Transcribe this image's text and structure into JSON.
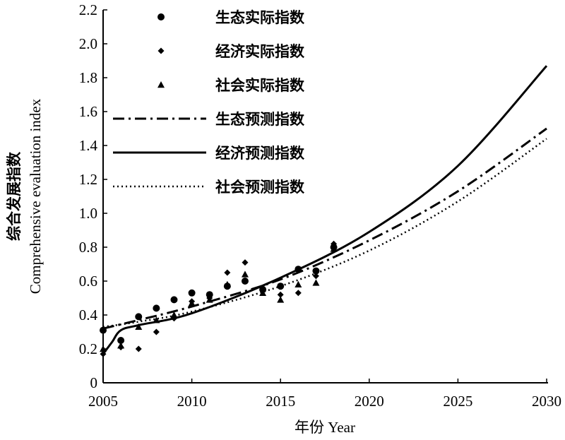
{
  "chart_data": {
    "type": "scatter",
    "xlabel": "年份 Year",
    "ylabel_cn": "综合发展指数",
    "ylabel_en": "Comprehensive evaluation index",
    "xlim": [
      2005,
      2030
    ],
    "ylim": [
      0,
      2.2
    ],
    "xticks": [
      "2005",
      "2010",
      "2015",
      "2020",
      "2025",
      "2030"
    ],
    "yticks": [
      "0",
      "0.2",
      "0.4",
      "0.6",
      "0.8",
      "1.0",
      "1.2",
      "1.4",
      "1.6",
      "1.8",
      "2.0",
      "2.2"
    ],
    "x_tick_values": [
      2005,
      2010,
      2015,
      2020,
      2025,
      2030
    ],
    "y_tick_values": [
      0,
      0.2,
      0.4,
      0.6,
      0.8,
      1.0,
      1.2,
      1.4,
      1.6,
      1.8,
      2.0,
      2.2
    ],
    "grid": false,
    "legend_position": "top-right",
    "series": [
      {
        "name": "生态实际指数",
        "kind": "scatter",
        "marker": "circle",
        "points": [
          [
            2005,
            0.31
          ],
          [
            2006,
            0.25
          ],
          [
            2007,
            0.39
          ],
          [
            2008,
            0.44
          ],
          [
            2009,
            0.49
          ],
          [
            2010,
            0.53
          ],
          [
            2011,
            0.52
          ],
          [
            2012,
            0.57
          ],
          [
            2013,
            0.6
          ],
          [
            2014,
            0.55
          ],
          [
            2015,
            0.57
          ],
          [
            2016,
            0.67
          ],
          [
            2017,
            0.66
          ],
          [
            2018,
            0.8
          ]
        ]
      },
      {
        "name": "经济实际指数",
        "kind": "scatter",
        "marker": "diamond",
        "points": [
          [
            2005,
            0.17
          ],
          [
            2006,
            0.21
          ],
          [
            2007,
            0.2
          ],
          [
            2008,
            0.3
          ],
          [
            2009,
            0.38
          ],
          [
            2010,
            0.48
          ],
          [
            2011,
            0.5
          ],
          [
            2012,
            0.65
          ],
          [
            2013,
            0.71
          ],
          [
            2014,
            0.56
          ],
          [
            2015,
            0.52
          ],
          [
            2016,
            0.53
          ],
          [
            2017,
            0.63
          ],
          [
            2018,
            0.82
          ]
        ]
      },
      {
        "name": "社会实际指数",
        "kind": "scatter",
        "marker": "triangle",
        "points": [
          [
            2005,
            0.2
          ],
          [
            2006,
            0.22
          ],
          [
            2007,
            0.33
          ],
          [
            2008,
            0.37
          ],
          [
            2009,
            0.4
          ],
          [
            2010,
            0.47
          ],
          [
            2011,
            0.49
          ],
          [
            2012,
            0.58
          ],
          [
            2013,
            0.64
          ],
          [
            2014,
            0.53
          ],
          [
            2015,
            0.49
          ],
          [
            2016,
            0.58
          ],
          [
            2017,
            0.59
          ],
          [
            2018,
            0.79
          ]
        ]
      },
      {
        "name": "生态预测指数",
        "kind": "line",
        "dash": "dashdot",
        "points": [
          [
            2005,
            0.32
          ],
          [
            2007,
            0.37
          ],
          [
            2010,
            0.45
          ],
          [
            2015,
            0.61
          ],
          [
            2020,
            0.84
          ],
          [
            2025,
            1.13
          ],
          [
            2030,
            1.5
          ]
        ]
      },
      {
        "name": "经济预测指数",
        "kind": "line",
        "dash": "solid",
        "points": [
          [
            2005,
            0.17
          ],
          [
            2005.5,
            0.24
          ],
          [
            2006,
            0.31
          ],
          [
            2007,
            0.34
          ],
          [
            2010,
            0.41
          ],
          [
            2015,
            0.62
          ],
          [
            2020,
            0.89
          ],
          [
            2025,
            1.28
          ],
          [
            2030,
            1.87
          ]
        ]
      },
      {
        "name": "社会预测指数",
        "kind": "line",
        "dash": "dotted",
        "points": [
          [
            2005,
            0.33
          ],
          [
            2007,
            0.36
          ],
          [
            2010,
            0.42
          ],
          [
            2015,
            0.57
          ],
          [
            2020,
            0.78
          ],
          [
            2025,
            1.07
          ],
          [
            2030,
            1.44
          ]
        ]
      }
    ]
  }
}
